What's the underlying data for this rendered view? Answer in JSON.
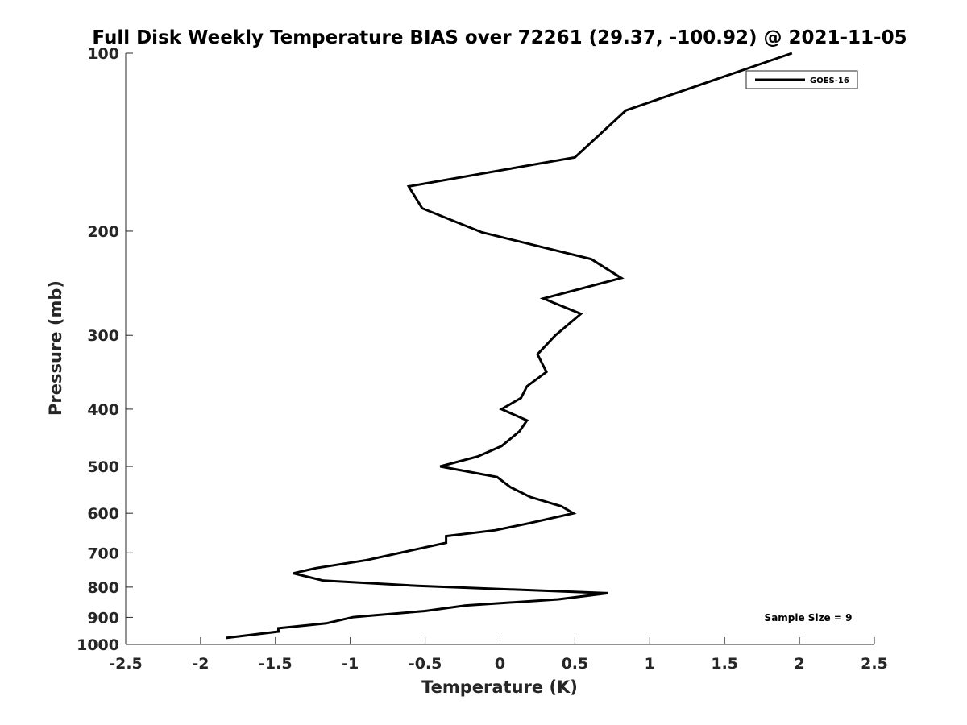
{
  "chart_data": {
    "type": "line",
    "title": "Full Disk Weekly Temperature BIAS over 72261 (29.37, -100.92) @ 2021-11-05",
    "xlabel": "Temperature (K)",
    "ylabel": "Pressure (mb)",
    "xlim": [
      -2.5,
      2.5
    ],
    "ylim": [
      100,
      1000
    ],
    "y_scale": "log",
    "y_reversed": true,
    "x_ticks": [
      "-2.5",
      "-2",
      "-1.5",
      "-1",
      "-0.5",
      "0",
      "0.5",
      "1",
      "1.5",
      "2",
      "2.5"
    ],
    "y_ticks": [
      "100",
      "200",
      "300",
      "400",
      "500",
      "600",
      "700",
      "800",
      "900",
      "1000"
    ],
    "grid": false,
    "legend_position": "top-right",
    "annotation": "Sample Size = 9",
    "series": [
      {
        "name": "GOES-16",
        "color": "#000000",
        "points": [
          [
            1.95,
            100
          ],
          [
            0.84,
            125
          ],
          [
            0.5,
            150
          ],
          [
            -0.61,
            168
          ],
          [
            -0.52,
            183
          ],
          [
            -0.12,
            201
          ],
          [
            0.61,
            223
          ],
          [
            0.81,
            240
          ],
          [
            0.29,
            260
          ],
          [
            0.54,
            276
          ],
          [
            0.37,
            300
          ],
          [
            0.25,
            323
          ],
          [
            0.31,
            346
          ],
          [
            0.18,
            366
          ],
          [
            0.14,
            383
          ],
          [
            0.01,
            400
          ],
          [
            0.18,
            418
          ],
          [
            0.13,
            436
          ],
          [
            0.01,
            462
          ],
          [
            -0.15,
            481
          ],
          [
            -0.4,
            500
          ],
          [
            -0.02,
            521
          ],
          [
            0.07,
            542
          ],
          [
            0.2,
            563
          ],
          [
            0.41,
            584
          ],
          [
            0.49,
            600
          ],
          [
            0.19,
            624
          ],
          [
            -0.03,
            641
          ],
          [
            -0.36,
            656
          ],
          [
            -0.36,
            673
          ],
          [
            -0.89,
            720
          ],
          [
            -1.23,
            743
          ],
          [
            -1.38,
            758
          ],
          [
            -1.18,
            780
          ],
          [
            -0.55,
            796
          ],
          [
            0.72,
            819
          ],
          [
            0.39,
            839
          ],
          [
            -0.23,
            859
          ],
          [
            -0.5,
            878
          ],
          [
            -0.98,
            899
          ],
          [
            -1.16,
            921
          ],
          [
            -1.48,
            939
          ],
          [
            -1.48,
            951
          ],
          [
            -1.83,
            975
          ]
        ]
      }
    ]
  }
}
